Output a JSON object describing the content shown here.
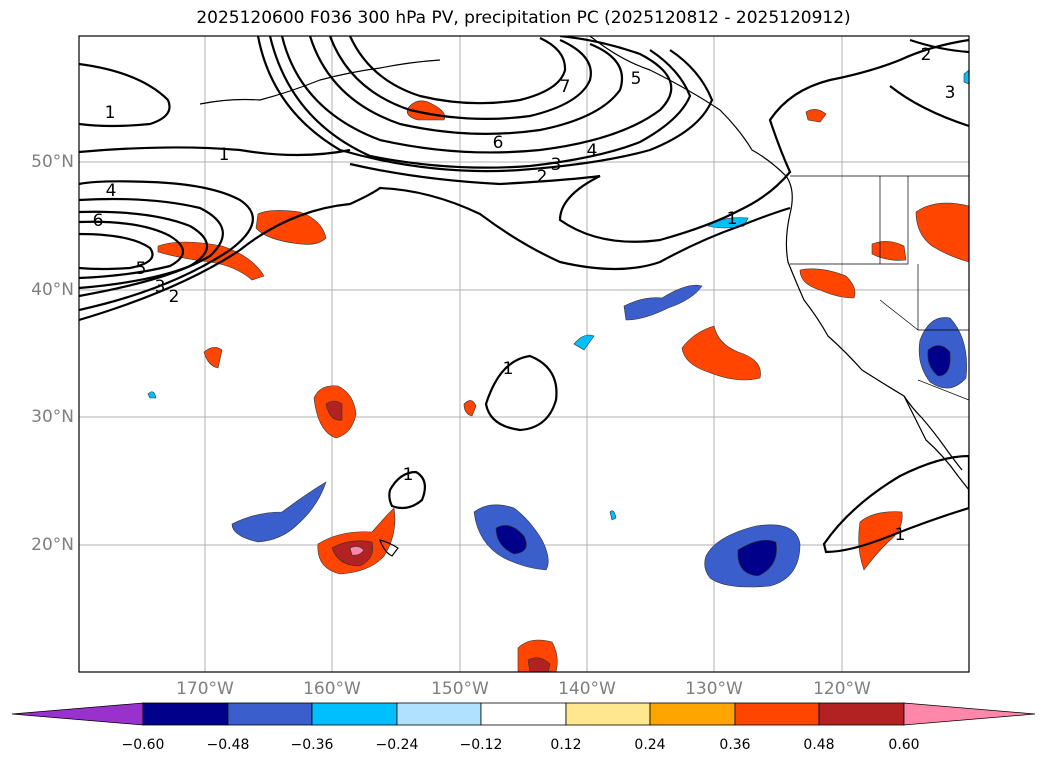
{
  "title": "2025120600 F036 300 hPa PV, precipitation PC (2025120812 - 2025120912)",
  "map": {
    "lat_labels": [
      "50°N",
      "40°N",
      "30°N",
      "20°N"
    ],
    "lon_labels": [
      "170°W",
      "160°W",
      "150°W",
      "140°W",
      "130°W",
      "120°W"
    ],
    "contour_labels": [
      "1",
      "1",
      "4",
      "6",
      "5",
      "3",
      "2",
      "6",
      "3",
      "2",
      "4",
      "7",
      "5",
      "2",
      "3",
      "1",
      "1",
      "1",
      "1"
    ]
  },
  "colorbar": {
    "tick_labels": [
      "−0.60",
      "−0.48",
      "−0.36",
      "−0.24",
      "−0.12",
      "0.12",
      "0.24",
      "0.36",
      "0.48",
      "0.60"
    ],
    "colors": [
      "#9932cc",
      "#00008b",
      "#3a5fcd",
      "#00bfff",
      "#b0e2ff",
      "#ffffff",
      "#ffe78f",
      "#ffa500",
      "#ff4500",
      "#b22222",
      "#ff88aa"
    ]
  },
  "colors": {
    "positive_anomaly": "#ff4500",
    "strong_positive": "#b22222",
    "negative_anomaly": "#3a5fcd",
    "strong_negative": "#00008b"
  }
}
